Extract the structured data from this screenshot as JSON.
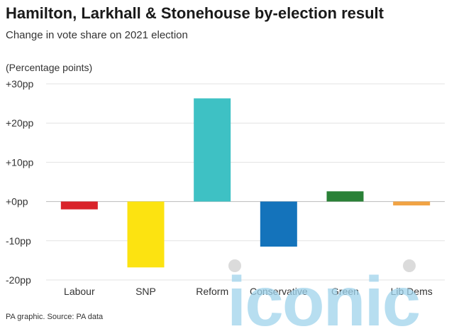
{
  "title": "Hamilton, Larkhall & Stonehouse by-election result",
  "subtitle": "Change in vote share on 2021 election",
  "unit_label": "(Percentage points)",
  "source": "PA graphic. Source: PA data",
  "watermark_text": "iconic",
  "chart_data": {
    "type": "bar",
    "categories": [
      "Labour",
      "SNP",
      "Reform",
      "Conservative",
      "Green",
      "Lib Dems"
    ],
    "values": [
      -2.0,
      -16.8,
      26.3,
      -11.5,
      2.6,
      -1.0
    ],
    "colors": [
      "#d9232a",
      "#fce311",
      "#3ec1c4",
      "#1473bb",
      "#2a8137",
      "#f1a344"
    ],
    "ylim": [
      -20,
      30
    ],
    "yticks": [
      30,
      20,
      10,
      0,
      -10,
      -20
    ],
    "ytick_labels": [
      "+30pp",
      "+20pp",
      "+10pp",
      "+0pp",
      "-10pp",
      "-20pp"
    ],
    "grid": true,
    "xlabel": "",
    "ylabel": "(Percentage points)"
  }
}
